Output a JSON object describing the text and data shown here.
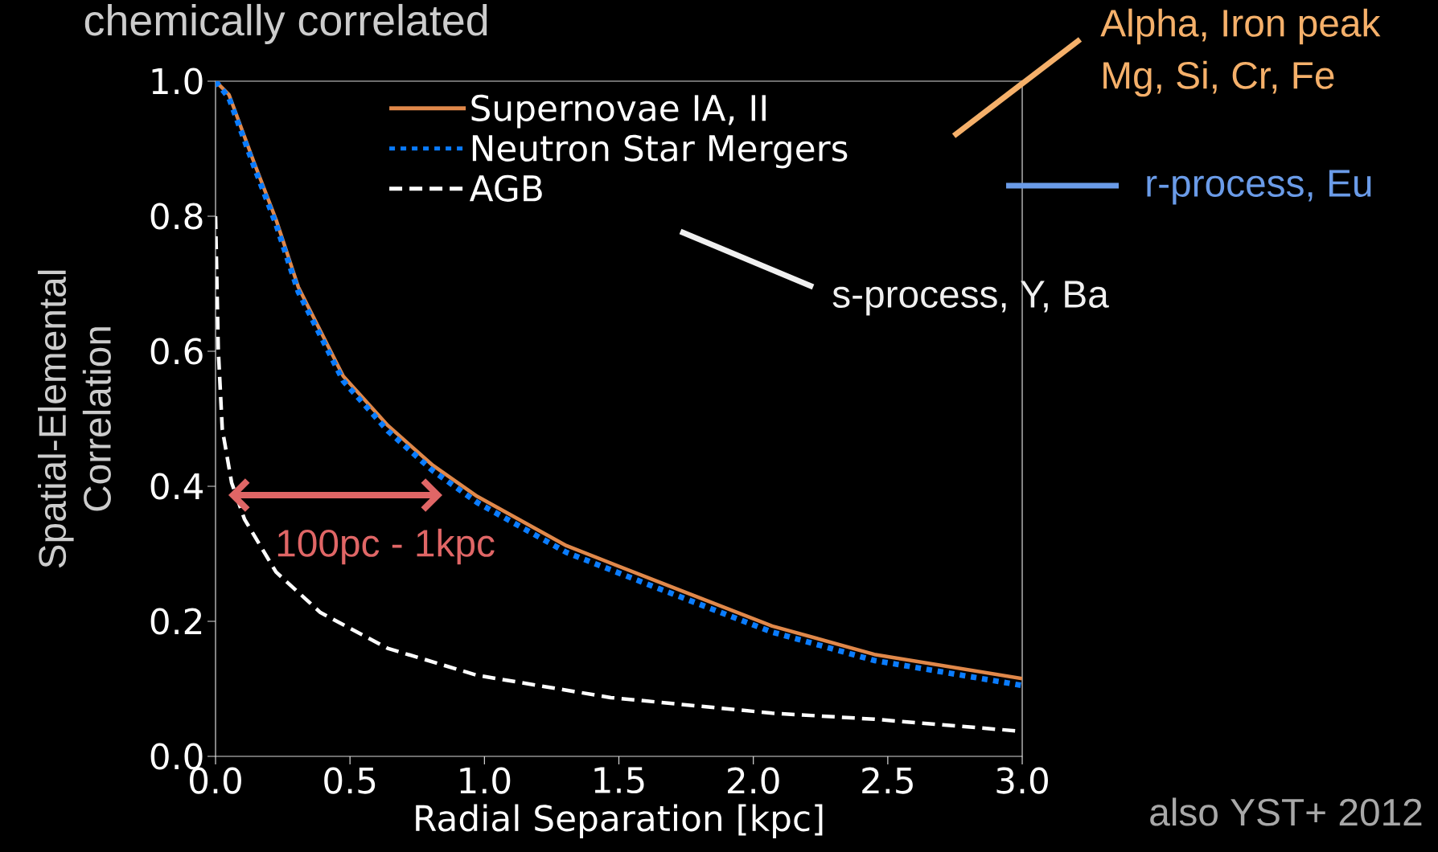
{
  "chart_data": {
    "type": "line",
    "title": "chemically correlated",
    "xlabel": "Radial Separation [kpc]",
    "ylabel": "Spatial-Elemental Correlation",
    "xlim": [
      0,
      3
    ],
    "ylim": [
      0,
      1
    ],
    "xticks": [
      {
        "value": 0,
        "label": "0.0"
      },
      {
        "value": 0.5,
        "label": "0.5"
      },
      {
        "value": 1,
        "label": "1.0"
      },
      {
        "value": 1.5,
        "label": "1.5"
      },
      {
        "value": 2,
        "label": "2.0"
      },
      {
        "value": 2.5,
        "label": "2.5"
      },
      {
        "value": 3,
        "label": "3.0"
      }
    ],
    "yticks": [
      {
        "value": 0,
        "label": "0.0"
      },
      {
        "value": 0.2,
        "label": "0.2"
      },
      {
        "value": 0.4,
        "label": "0.4"
      },
      {
        "value": 0.6,
        "label": "0.6"
      },
      {
        "value": 0.8,
        "label": "0.8"
      },
      {
        "value": 1,
        "label": "1.0"
      }
    ],
    "grid": false,
    "legend": "top",
    "marker": "none",
    "series": [
      {
        "name": "Supernovae IA, II",
        "color": "#e0884a",
        "line_style": "solid",
        "x": [
          0,
          0.05,
          0.142,
          0.225,
          0.308,
          0.475,
          0.641,
          0.808,
          0.973,
          1.305,
          1.638,
          2.07,
          2.45,
          3.0
        ],
        "values": [
          1.0,
          0.98,
          0.881,
          0.795,
          0.695,
          0.563,
          0.49,
          0.431,
          0.385,
          0.312,
          0.26,
          0.193,
          0.151,
          0.115
        ]
      },
      {
        "name": "Neutron Star Mergers",
        "color": "#0a7cff",
        "line_style": "dotted",
        "x": [
          0,
          0.05,
          0.142,
          0.225,
          0.308,
          0.475,
          0.641,
          0.808,
          0.973,
          1.305,
          1.638,
          2.07,
          2.45,
          3.0
        ],
        "values": [
          1.0,
          0.975,
          0.875,
          0.788,
          0.688,
          0.556,
          0.482,
          0.423,
          0.376,
          0.302,
          0.25,
          0.184,
          0.142,
          0.105
        ]
      },
      {
        "name": "AGB",
        "color": "#ffffff",
        "line_style": "dashed",
        "x": [
          0,
          0.01,
          0.025,
          0.06,
          0.108,
          0.225,
          0.39,
          0.64,
          0.973,
          1.47,
          2.07,
          2.45,
          3.0
        ],
        "values": [
          0.8,
          0.604,
          0.485,
          0.405,
          0.351,
          0.273,
          0.213,
          0.16,
          0.12,
          0.087,
          0.064,
          0.055,
          0.037
        ]
      }
    ],
    "annotations": [
      "Alpha, Iron peak",
      "Mg, Si, Cr, Fe",
      "r-process, Eu",
      "s-process, Y, Ba",
      "100pc - 1kpc",
      "also YST+ 2012"
    ]
  }
}
